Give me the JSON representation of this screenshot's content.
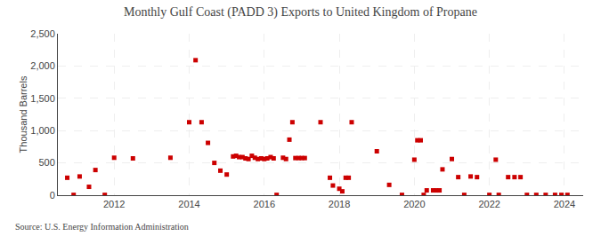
{
  "chart_data": {
    "type": "scatter",
    "title": "Monthly Gulf Coast (PADD 3) Exports to United Kingdom of Propane",
    "ylabel": "Thousand Barrels",
    "annotations": [
      "Source: U.S. Energy Information Administration"
    ],
    "color": "#cc0000",
    "marker": "square",
    "grid": true,
    "xlim": [
      2010.5,
      2024.5
    ],
    "xticks": [
      2012,
      2014,
      2016,
      2018,
      2020,
      2022,
      2024
    ],
    "ylim": [
      0,
      2500
    ],
    "yticks": [
      0,
      500,
      {
        "value": 1000,
        "label": "1,000"
      },
      {
        "value": 1500,
        "label": "1,500"
      },
      {
        "value": 2000,
        "label": "2,000"
      },
      {
        "value": 2500,
        "label": "2,500"
      }
    ],
    "x": [
      2010.75,
      2010.92,
      2011.08,
      2011.33,
      2011.5,
      2011.75,
      2012.0,
      2012.5,
      2013.5,
      2014.0,
      2014.17,
      2014.33,
      2014.5,
      2014.67,
      2014.83,
      2015.0,
      2015.17,
      2015.25,
      2015.33,
      2015.42,
      2015.5,
      2015.58,
      2015.67,
      2015.75,
      2015.83,
      2015.92,
      2016.0,
      2016.08,
      2016.17,
      2016.25,
      2016.33,
      2016.5,
      2016.58,
      2016.67,
      2016.75,
      2016.83,
      2016.92,
      2017.0,
      2017.08,
      2017.5,
      2017.75,
      2017.83,
      2018.0,
      2018.08,
      2018.17,
      2018.25,
      2018.33,
      2019.0,
      2019.33,
      2019.67,
      2020.0,
      2020.08,
      2020.17,
      2020.25,
      2020.33,
      2020.5,
      2020.58,
      2020.67,
      2020.75,
      2021.0,
      2021.17,
      2021.33,
      2021.5,
      2021.67,
      2022.0,
      2022.17,
      2022.25,
      2022.5,
      2022.67,
      2022.83,
      2023.0,
      2023.25,
      2023.5,
      2023.75,
      2023.92,
      2024.08
    ],
    "values": [
      270,
      5,
      290,
      130,
      390,
      5,
      580,
      570,
      580,
      1130,
      2090,
      1130,
      810,
      500,
      380,
      320,
      600,
      610,
      590,
      590,
      570,
      560,
      610,
      580,
      560,
      570,
      560,
      570,
      590,
      570,
      5,
      580,
      560,
      860,
      1130,
      575,
      575,
      575,
      575,
      1130,
      270,
      150,
      100,
      60,
      270,
      270,
      1130,
      680,
      160,
      5,
      550,
      850,
      850,
      5,
      75,
      75,
      75,
      75,
      400,
      560,
      280,
      5,
      290,
      280,
      5,
      550,
      5,
      280,
      280,
      280,
      5,
      5,
      5,
      5,
      5,
      5
    ]
  }
}
